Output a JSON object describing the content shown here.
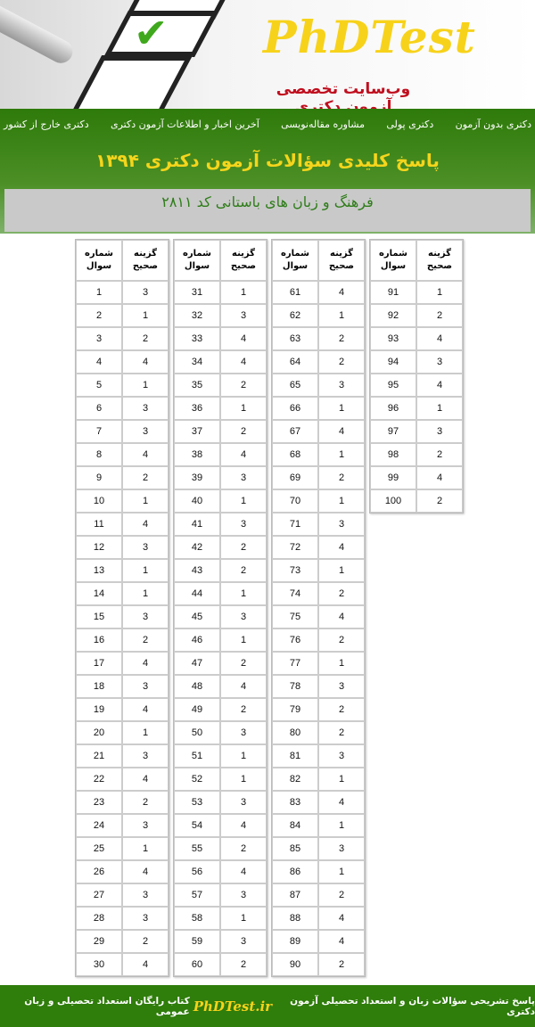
{
  "header": {
    "logo": "PhDTest",
    "tagline": "وب‌سایت تخصصی آزمون دکتری"
  },
  "nav": [
    "دکتری بدون آزمون",
    "دکتری پولی",
    "مشاوره مقاله‌نویسی",
    "آخرین اخبار و اطلاعات آزمون دکتری",
    "دکتری خارج از کشور"
  ],
  "title": "پاسخ کلیدی سؤالات آزمون دکتری ۱۳۹۴",
  "subtitle": "فرهنگ و زبان های باستانی کد ۲۸۱۱",
  "table_headers": {
    "question": "شماره سوال",
    "answer": "گزینه صحیح"
  },
  "answers": [
    3,
    1,
    2,
    4,
    1,
    3,
    3,
    4,
    2,
    1,
    4,
    3,
    1,
    1,
    3,
    2,
    4,
    3,
    4,
    1,
    3,
    4,
    2,
    3,
    1,
    4,
    3,
    3,
    2,
    4,
    1,
    3,
    4,
    4,
    2,
    1,
    2,
    4,
    3,
    1,
    3,
    2,
    2,
    1,
    3,
    1,
    2,
    4,
    2,
    3,
    1,
    1,
    3,
    4,
    2,
    4,
    3,
    1,
    3,
    2,
    4,
    1,
    2,
    2,
    3,
    1,
    4,
    1,
    2,
    1,
    3,
    4,
    1,
    2,
    4,
    2,
    1,
    3,
    2,
    2,
    3,
    1,
    4,
    1,
    3,
    1,
    2,
    4,
    4,
    2,
    1,
    2,
    4,
    3,
    4,
    1,
    3,
    2,
    4,
    2
  ],
  "footer": {
    "left": "پاسخ تشریحی سؤالات زبان و استعداد تحصیلی آزمون دکتری",
    "link": "PhDTest.ir",
    "right": "کتاب رایگان استعداد تحصیلی و زبان عمومی"
  },
  "colors": {
    "green": "#2f7d0b",
    "yellow": "#f7d21a",
    "red": "#c00f1f"
  }
}
